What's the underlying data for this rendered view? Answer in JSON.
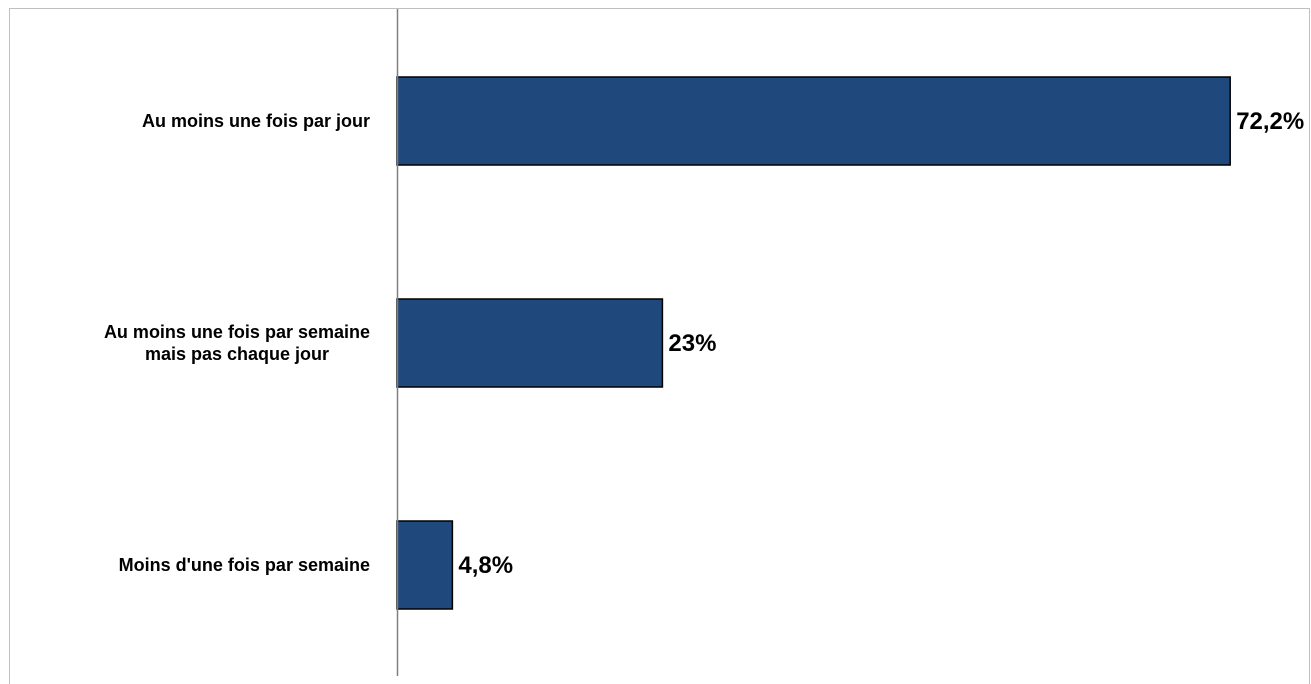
{
  "chart_data": {
    "type": "bar",
    "orientation": "horizontal",
    "categories": [
      [
        "Au  moins une fois par  jour"
      ],
      [
        "Au  moins une fois par  semaine",
        "mais pas chaque jour"
      ],
      [
        "Moins d'une fois par  semaine"
      ]
    ],
    "values": [
      72.2,
      23,
      4.8
    ],
    "value_labels": [
      "72,2%",
      "23%",
      "4,8%"
    ],
    "xlim": [
      0,
      100
    ],
    "grid": false,
    "legend": "none",
    "colors": {
      "bar": "#1F497D",
      "bar_edge": "#000000",
      "axis": "#808080",
      "frame": "#BFBFBF"
    }
  }
}
